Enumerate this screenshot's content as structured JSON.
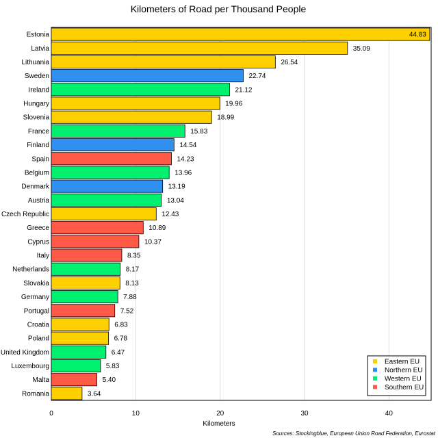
{
  "chart_data": {
    "type": "bar",
    "orientation": "horizontal",
    "title": "Kilometers of Road per Thousand People",
    "xlabel": "Kilometers",
    "ylabel": "",
    "xlim": [
      0,
      45
    ],
    "xticks": [
      0,
      10,
      20,
      30,
      40
    ],
    "grid": true,
    "categories": [
      "Estonia",
      "Latvia",
      "Lithuania",
      "Sweden",
      "Ireland",
      "Hungary",
      "Slovenia",
      "France",
      "Finland",
      "Spain",
      "Belgium",
      "Denmark",
      "Austria",
      "Czech Republic",
      "Greece",
      "Cyprus",
      "Italy",
      "Netherlands",
      "Slovakia",
      "Germany",
      "Portugal",
      "Croatia",
      "Poland",
      "United Kingdom",
      "Luxembourg",
      "Malta",
      "Romania"
    ],
    "values": [
      44.83,
      35.09,
      26.54,
      22.74,
      21.12,
      19.96,
      18.99,
      15.83,
      14.54,
      14.23,
      13.96,
      13.19,
      13.04,
      12.43,
      10.89,
      10.37,
      8.35,
      8.17,
      8.13,
      7.88,
      7.52,
      6.83,
      6.78,
      6.47,
      5.83,
      5.4,
      3.64
    ],
    "value_labels": [
      "44.83",
      "35.09",
      "26.54",
      "22.74",
      "21.12",
      "19.96",
      "18.99",
      "15.83",
      "14.54",
      "14.23",
      "13.96",
      "13.19",
      "13.04",
      "12.43",
      "10.89",
      "10.37",
      "8.35",
      "8.17",
      "8.13",
      "7.88",
      "7.52",
      "6.83",
      "6.78",
      "6.47",
      "5.83",
      "5.40",
      "3.64"
    ],
    "groups": [
      "Eastern EU",
      "Eastern EU",
      "Eastern EU",
      "Northern EU",
      "Western EU",
      "Eastern EU",
      "Eastern EU",
      "Western EU",
      "Northern EU",
      "Southern EU",
      "Western EU",
      "Northern EU",
      "Western EU",
      "Eastern EU",
      "Southern EU",
      "Southern EU",
      "Southern EU",
      "Western EU",
      "Eastern EU",
      "Western EU",
      "Southern EU",
      "Eastern EU",
      "Eastern EU",
      "Western EU",
      "Western EU",
      "Southern EU",
      "Eastern EU"
    ],
    "legend": {
      "placement": "bottom-right",
      "entries": [
        {
          "name": "Eastern EU",
          "color": "#ffd000"
        },
        {
          "name": "Northern EU",
          "color": "#3090f0"
        },
        {
          "name": "Western EU",
          "color": "#00f070"
        },
        {
          "name": "Southern EU",
          "color": "#ff5a48"
        }
      ]
    },
    "source": "Sources: Stockingblue, European Union Road Federation, Eurostat"
  }
}
